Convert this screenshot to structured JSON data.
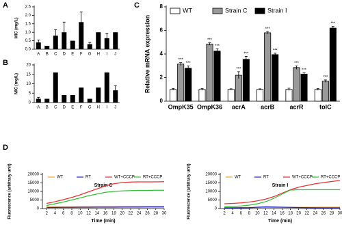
{
  "chart_data": [
    {
      "type": "bar",
      "panel_label": "A",
      "y_label": "MIC (mg/L)",
      "categories": [
        "A",
        "B",
        "C",
        "D",
        "E",
        "F",
        "G",
        "H",
        "I",
        "J"
      ],
      "values": [
        0.4,
        0.2,
        0.8,
        1.0,
        0.5,
        1.6,
        0.3,
        1.0,
        0.65,
        1.0
      ],
      "errors": [
        0.15,
        null,
        0.35,
        0.6,
        null,
        0.6,
        0.1,
        null,
        0.3,
        null
      ],
      "color": "#000000",
      "ylim": [
        0,
        2.5
      ],
      "yticks": [
        {
          "value": 0,
          "label": "0.0"
        },
        0.5,
        {
          "value": 1,
          "label": "1.0"
        },
        1.5,
        {
          "value": 2,
          "label": "2.0"
        },
        2.5
      ]
    },
    {
      "type": "bar",
      "panel_label": "B",
      "y_label": "MIC (mg/L)",
      "categories": [
        "A",
        "B",
        "C",
        "D",
        "E",
        "F",
        "G",
        "H",
        "I",
        "J"
      ],
      "values": [
        2,
        2,
        16,
        4,
        4,
        8,
        2,
        8,
        16,
        6.5
      ],
      "errors": [
        0.8,
        null,
        null,
        null,
        null,
        null,
        null,
        null,
        null,
        2.5
      ],
      "color": "#000000",
      "ylim": [
        0,
        20
      ],
      "yticks": [
        0,
        5,
        10,
        15,
        20
      ]
    },
    {
      "type": "grouped_bar",
      "panel_label": "C",
      "y_label": "Relative mRNA expression",
      "categories": [
        "OmpK35",
        "OmpK36",
        "acrA",
        "acrB",
        "acrR",
        "tolC"
      ],
      "series": [
        {
          "name": "WT",
          "color": "#ffffff",
          "values": [
            1,
            1,
            1,
            1,
            1,
            1
          ],
          "errors": [
            0.08,
            0.08,
            0.05,
            0.05,
            0.1,
            0.08
          ]
        },
        {
          "name": "Strain C",
          "color": "#999999",
          "values": [
            3.15,
            4.85,
            2.2,
            5.8,
            2.85,
            1.7
          ],
          "errors": [
            0.12,
            0.1,
            0.3,
            0.1,
            0.15,
            0.1
          ],
          "annotations": [
            "***",
            "***",
            "***",
            "***",
            "***",
            "***"
          ]
        },
        {
          "name": "Strain I",
          "color": "#000000",
          "values": [
            2.8,
            4.25,
            3.55,
            3.95,
            2.3,
            6.2
          ],
          "errors": [
            0.2,
            0.2,
            0.25,
            0.12,
            0.12,
            0.15
          ],
          "annotations": [
            "***",
            "***",
            "***",
            "***",
            "***",
            "***"
          ]
        }
      ],
      "ylim": [
        0,
        8
      ],
      "yticks": [
        0,
        2,
        4,
        6,
        8
      ],
      "legend": "top-left"
    },
    {
      "type": "line",
      "panel_label": "D",
      "title": "Strain C",
      "x_label": "Time (min)",
      "y_label": "Fluorescence (arbitrary unit)",
      "x": [
        2,
        4,
        6,
        8,
        10,
        12,
        14,
        16,
        18,
        20,
        22,
        24,
        26,
        28,
        30
      ],
      "series": [
        {
          "name": "WT",
          "color": "#f0a030",
          "values": [
            900,
            950,
            1000,
            1050,
            1100,
            1100,
            1150,
            1200,
            1200,
            1200,
            1250,
            1250,
            1300,
            1300,
            1300
          ]
        },
        {
          "name": "RT",
          "color": "#2020c0",
          "values": [
            600,
            650,
            700,
            700,
            750,
            750,
            800,
            800,
            800,
            850,
            850,
            850,
            900,
            900,
            900
          ]
        },
        {
          "name": "WT+CCCP",
          "color": "#e83030",
          "values": [
            3000,
            4000,
            5200,
            6500,
            8000,
            9800,
            11500,
            13200,
            14500,
            15200,
            15500,
            15600,
            15600,
            15600,
            15700
          ]
        },
        {
          "name": "RT+CCCP",
          "color": "#30c030",
          "values": [
            1800,
            2800,
            3800,
            5000,
            6200,
            7500,
            8500,
            9500,
            10000,
            10300,
            10500,
            10600,
            10600,
            10700,
            10700
          ]
        }
      ],
      "xlim": [
        1,
        30
      ],
      "xticks": [
        2,
        4,
        6,
        8,
        10,
        12,
        14,
        16,
        18,
        20,
        22,
        24,
        26,
        28,
        30
      ],
      "ylim": [
        0,
        20000
      ],
      "yticks": [
        0,
        5000,
        10000,
        15000,
        20000
      ],
      "legend": "top"
    },
    {
      "type": "line",
      "title": "Strain I",
      "x_label": "Time (min)",
      "y_label": "Fluorescence (arbitrary unit)",
      "x": [
        2,
        4,
        6,
        8,
        10,
        12,
        14,
        16,
        18,
        20,
        22,
        24,
        26,
        28,
        30
      ],
      "series": [
        {
          "name": "WT",
          "color": "#f0a030",
          "values": [
            500,
            500,
            550,
            600,
            600,
            650,
            650,
            700,
            700,
            700,
            750,
            750,
            800,
            800,
            800
          ]
        },
        {
          "name": "RT",
          "color": "#2020c0",
          "values": [
            400,
            400,
            450,
            500,
            800,
            1000,
            900,
            800,
            700,
            600,
            500,
            450,
            400,
            400,
            400
          ]
        },
        {
          "name": "WT+CCCP",
          "color": "#e83030",
          "values": [
            2800,
            3000,
            3300,
            3800,
            4500,
            5500,
            7000,
            9000,
            11000,
            12500,
            13500,
            14500,
            15200,
            15800,
            16500
          ]
        },
        {
          "name": "RT+CCCP",
          "color": "#30c030",
          "values": [
            1000,
            1200,
            1500,
            2000,
            2800,
            4000,
            6000,
            8500,
            10800,
            11000,
            11000,
            11000,
            11000,
            11000,
            11000
          ]
        }
      ],
      "xlim": [
        1,
        30
      ],
      "xticks": [
        2,
        4,
        6,
        8,
        10,
        12,
        14,
        16,
        18,
        20,
        22,
        24,
        26,
        28,
        30
      ],
      "ylim": [
        0,
        20000
      ],
      "yticks": [
        0,
        5000,
        10000,
        15000,
        20000
      ],
      "legend": "top"
    }
  ]
}
